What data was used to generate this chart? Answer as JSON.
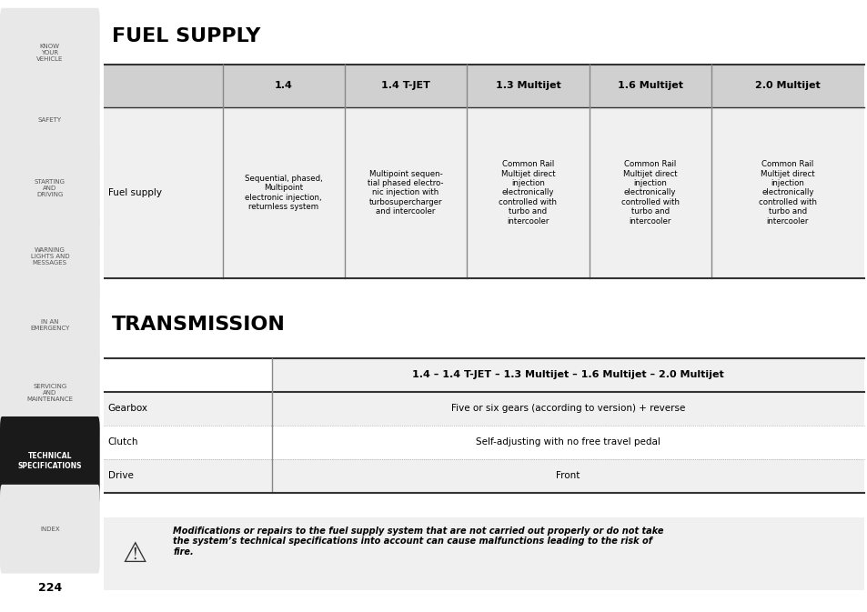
{
  "title_fuel": "FUEL SUPPLY",
  "title_transmission": "TRANSMISSION",
  "fuel_headers": [
    "1.4",
    "1.4 T-JET",
    "1.3 Multijet",
    "1.6 Multijet",
    "2.0 Multijet"
  ],
  "fuel_row_label": "Fuel supply",
  "fuel_cells": [
    "Sequential, phased,\nMultipoint\nelectronic injection,\nreturnless system",
    "Multipoint sequen-\ntial phased electro-\nnic injection with\nturbosupercharger\nand intercooler",
    "Common Rail\nMultijet direct\ninjection\nelectronically\ncontrolled with\nturbo and\nintercooler",
    "Common Rail\nMultijet direct\ninjection\nelectronically\ncontrolled with\nturbo and\nintercooler",
    "Common Rail\nMultijet direct\ninjection\nelectronically\ncontrolled with\nturbo and\nintercooler"
  ],
  "trans_header": "1.4 – 1.4 T-JET – 1.3 Multijet – 1.6 Multijet – 2.0 Multijet",
  "trans_rows": [
    [
      "Gearbox",
      "Five or six gears (according to version) + reverse"
    ],
    [
      "Clutch",
      "Self-adjusting with no free travel pedal"
    ],
    [
      "Drive",
      "Front"
    ]
  ],
  "warning_text": "Modifications or repairs to the fuel supply system that are not carried out properly or do not take\nthe system’s technical specifications into account can cause malfunctions leading to the risk of\nfire.",
  "sidebar_items": [
    "KNOW\nYOUR\nVEHICLE",
    "SAFETY",
    "STARTING\nAND\nDRIVING",
    "WARNING\nLIGHTS AND\nMESSAGES",
    "IN AN\nEMERGENCY",
    "SERVICING\nAND\nMAINTENANCE",
    "TECHNICAL\nSPECIFICATIONS",
    "INDEX"
  ],
  "active_sidebar": 6,
  "page_number": "224",
  "bg_color": "#ffffff",
  "sidebar_bg": "#e8e8e8",
  "sidebar_active_bg": "#1a1a1a",
  "sidebar_active_fg": "#ffffff",
  "table_header_bg": "#d0d0d0",
  "table_row_bg": "#f0f0f0",
  "table_alt_bg": "#e8e8e8",
  "grid_color": "#888888",
  "border_color": "#333333"
}
